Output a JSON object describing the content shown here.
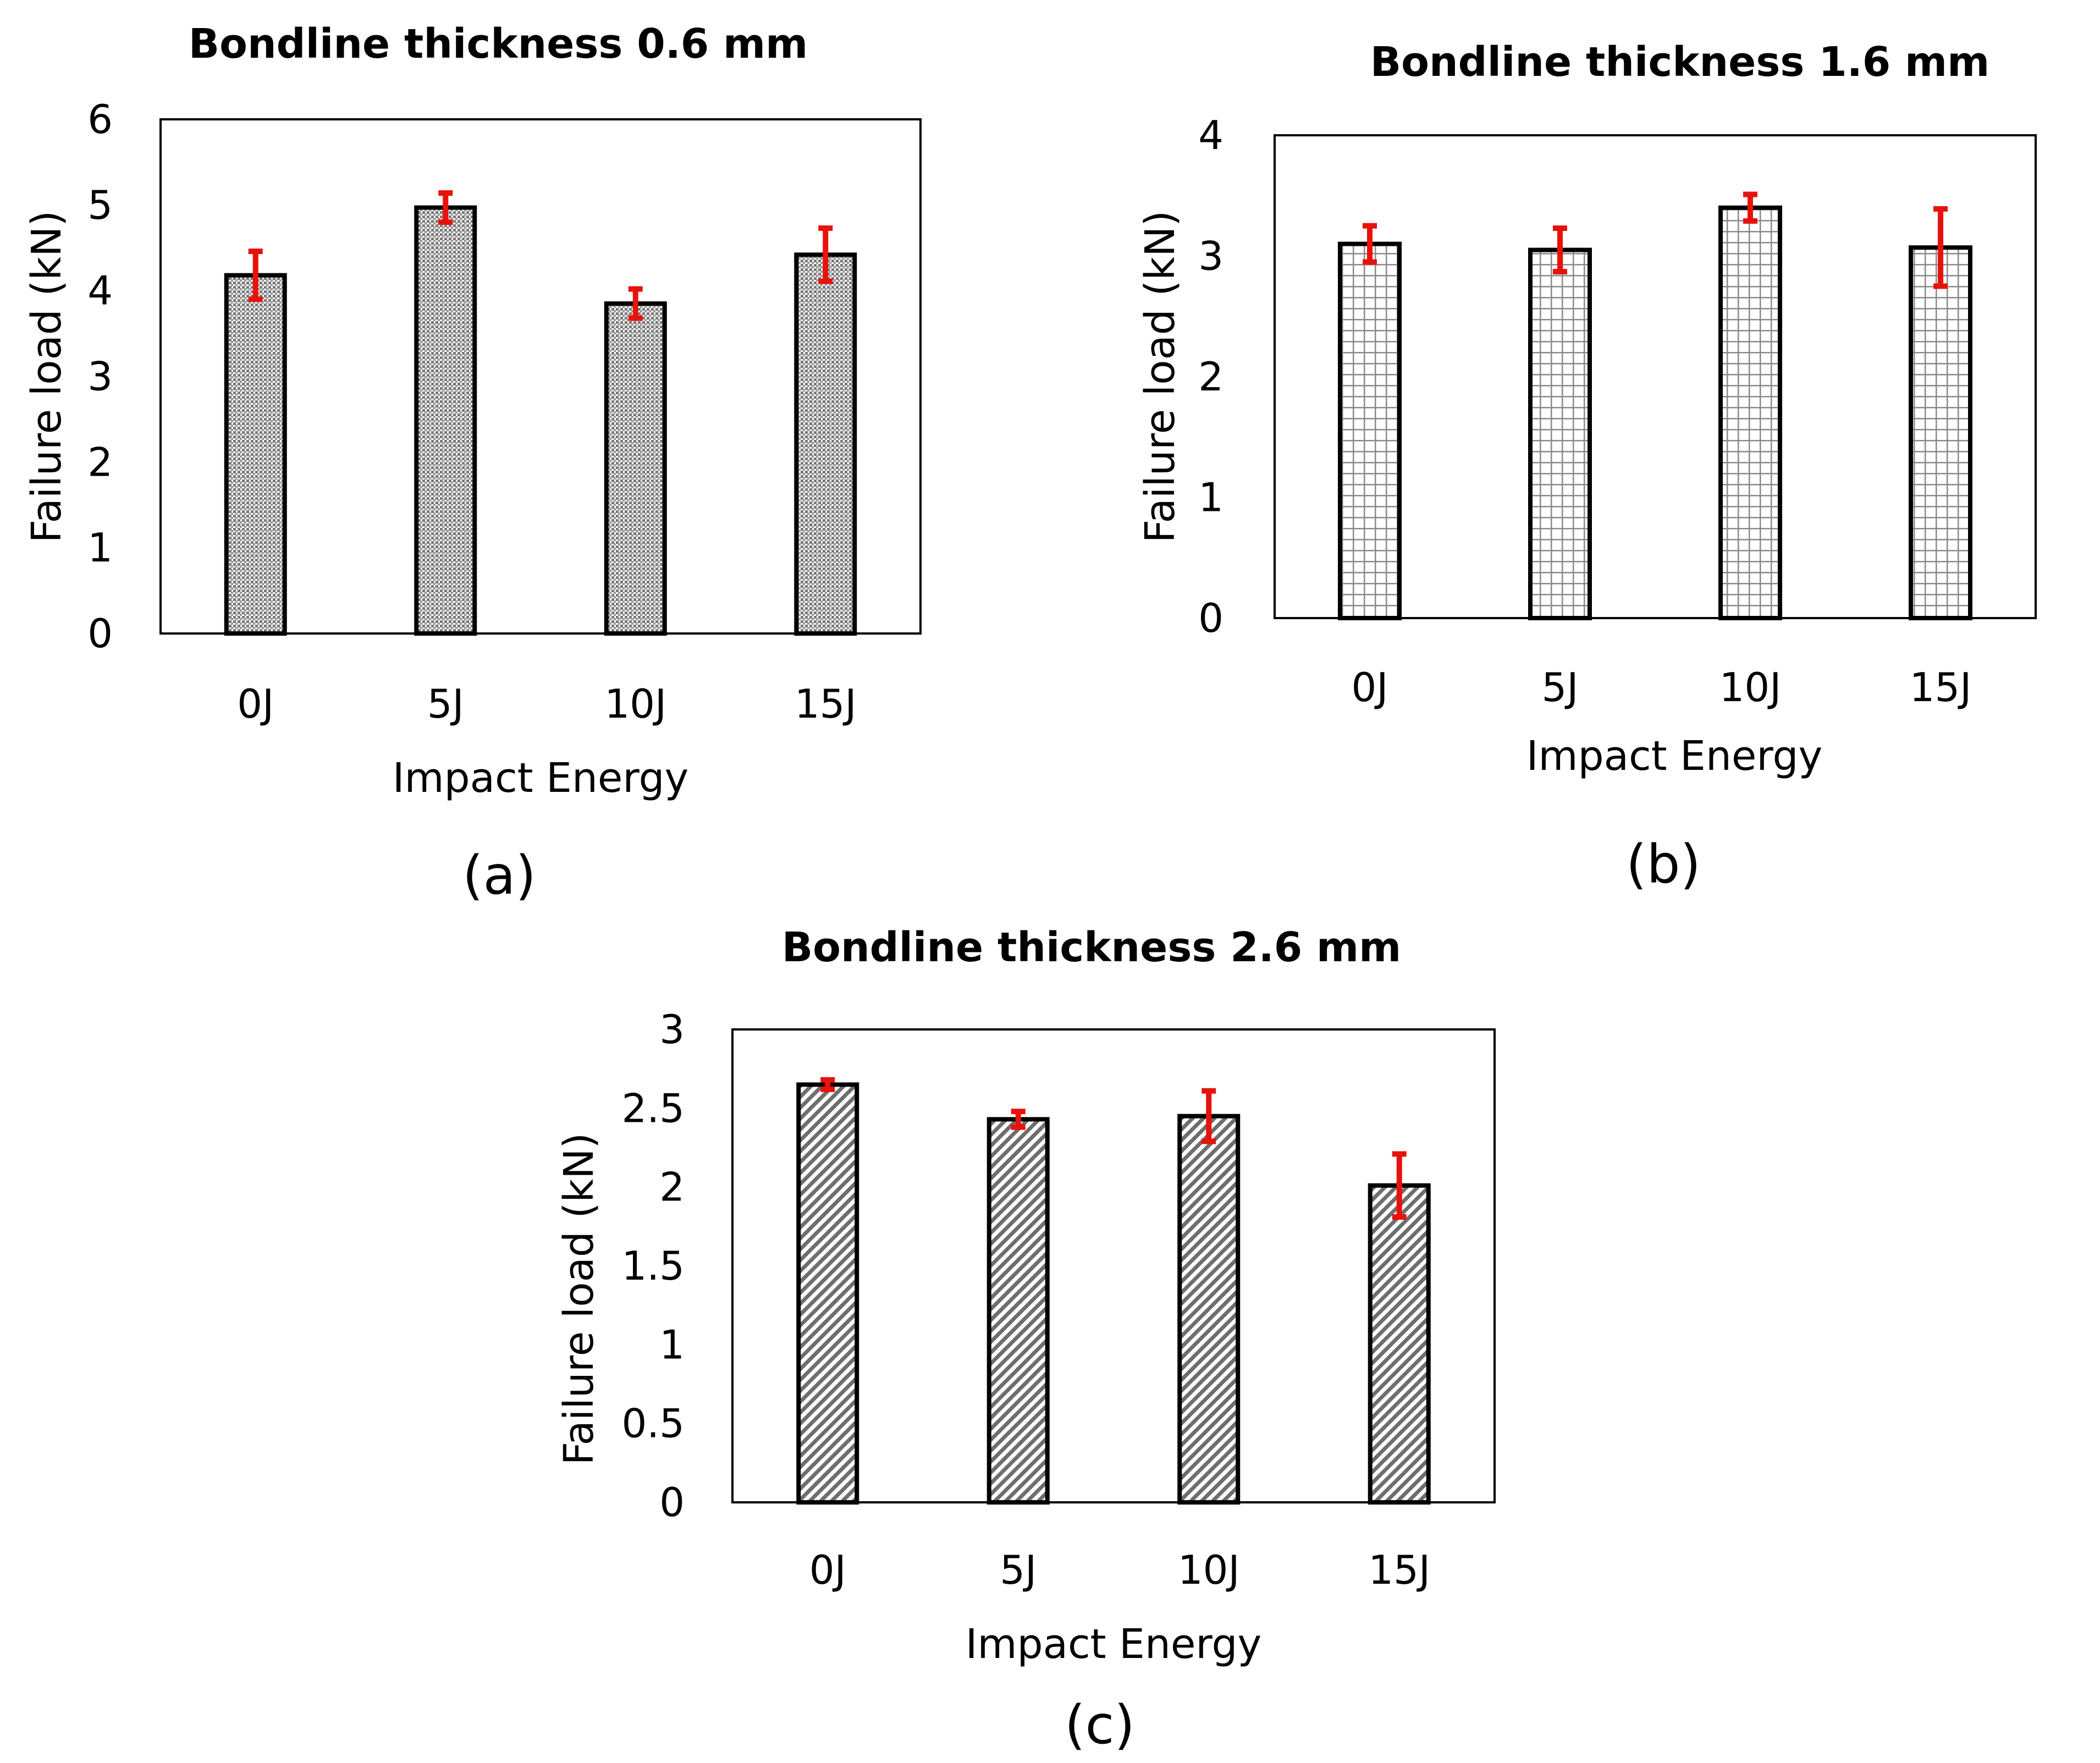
{
  "colors": {
    "bar_stroke": "#000000",
    "error_bar": "#e8120c",
    "frame": "#000000",
    "background": "#ffffff"
  },
  "chart_data": [
    {
      "type": "bar",
      "panel": "(a)",
      "title": "Bondline thickness 0.6 mm",
      "xlabel": "Impact Energy",
      "ylabel": "Failure load (kN)",
      "categories": [
        "0J",
        "5J",
        "10J",
        "15J"
      ],
      "values": [
        4.18,
        4.97,
        3.85,
        4.42
      ],
      "errors": [
        0.28,
        0.17,
        0.17,
        0.31
      ],
      "ylim": [
        0,
        6
      ],
      "yticks": [
        0,
        1,
        2,
        3,
        4,
        5,
        6
      ],
      "ytick_labels": [
        "0",
        "1",
        "2",
        "3",
        "4",
        "5",
        "6"
      ],
      "pattern": "dots",
      "grid": false
    },
    {
      "type": "bar",
      "panel": "(b)",
      "title": "Bondline thickness 1.6 mm",
      "xlabel": "Impact Energy",
      "ylabel": "Failure load (kN)",
      "categories": [
        "0J",
        "5J",
        "10J",
        "15J"
      ],
      "values": [
        3.1,
        3.05,
        3.4,
        3.07
      ],
      "errors": [
        0.15,
        0.18,
        0.11,
        0.32
      ],
      "ylim": [
        0,
        4
      ],
      "yticks": [
        0,
        1,
        2,
        3,
        4
      ],
      "ytick_labels": [
        "0",
        "1",
        "2",
        "3",
        "4"
      ],
      "pattern": "grid",
      "grid": false
    },
    {
      "type": "bar",
      "panel": "(c)",
      "title": "Bondline thickness 2.6 mm",
      "xlabel": "Impact Energy",
      "ylabel": "Failure load (kN)",
      "categories": [
        "0J",
        "5J",
        "10J",
        "15J"
      ],
      "values": [
        2.65,
        2.43,
        2.45,
        2.01
      ],
      "errors": [
        0.03,
        0.05,
        0.16,
        0.2
      ],
      "ylim": [
        0,
        3
      ],
      "yticks": [
        0,
        0.5,
        1,
        1.5,
        2,
        2.5,
        3
      ],
      "ytick_labels": [
        "0",
        "0.5",
        "1",
        "1.5",
        "2",
        "2.5",
        "3"
      ],
      "pattern": "diagonal",
      "grid": false
    }
  ]
}
